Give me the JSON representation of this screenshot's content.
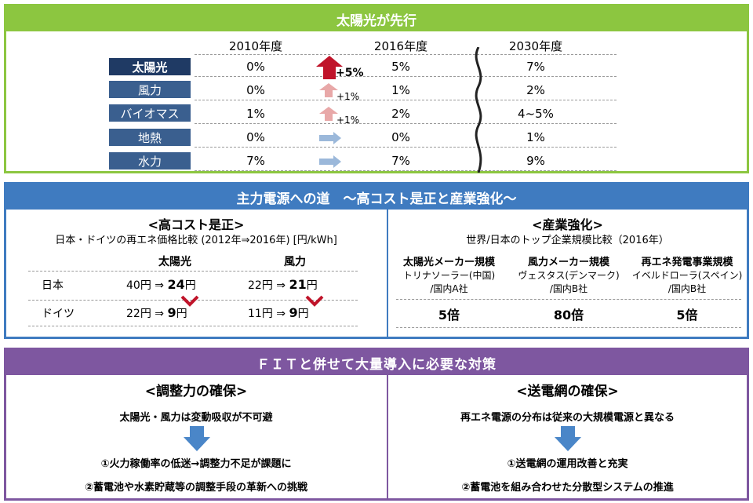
{
  "panel1": {
    "title": "太陽光が先行",
    "years": [
      "2010年度",
      "2016年度",
      "2030年度"
    ],
    "rows": [
      {
        "label": "太陽光",
        "v2010": "0%",
        "change": "+5%",
        "v2016": "5%",
        "v2030": "7%"
      },
      {
        "label": "風力",
        "v2010": "0%",
        "change": "+1%",
        "v2016": "1%",
        "v2030": "2%"
      },
      {
        "label": "バイオマス",
        "v2010": "1%",
        "change": "+1%",
        "v2016": "2%",
        "v2030": "4~5%"
      },
      {
        "label": "地熱",
        "v2010": "0%",
        "change": "",
        "v2016": "0%",
        "v2030": "1%"
      },
      {
        "label": "水力",
        "v2010": "7%",
        "change": "",
        "v2016": "7%",
        "v2030": "9%"
      }
    ],
    "colors": {
      "header": "#8cc640",
      "label_dark": "#1f3a64",
      "label_mid": "#3a5f8f",
      "arrow_big": "#c0142a",
      "arrow_small": "#e8a8a8",
      "arrow_right": "#9bb8da"
    }
  },
  "panel2": {
    "title": "主力電源への道　～高コスト是正と産業強化～",
    "left": {
      "heading": "<高コスト是正>",
      "subtitle": "日本・ドイツの再エネ価格比較 (2012年⇒2016年) [円/kWh]",
      "col_solar": "太陽光",
      "col_wind": "風力",
      "rows": [
        {
          "country": "日本",
          "solar_from": "40円 ⇒ ",
          "solar_to": "24",
          "wind_from": "22円 ⇒ ",
          "wind_to": "21",
          "unit": "円"
        },
        {
          "country": "ドイツ",
          "solar_from": "22円 ⇒ ",
          "solar_to": "9",
          "wind_from": "11円 ⇒ ",
          "wind_to": "9",
          "unit": "円"
        }
      ]
    },
    "right": {
      "heading": "<産業強化>",
      "subtitle": "世界/日本のトップ企業規模比較（2016年）",
      "cols": [
        {
          "title": "太陽光メーカー規模",
          "line1": "トリナソーラー(中国)",
          "line2": "/国内A社",
          "ratio": "5倍"
        },
        {
          "title": "風力メーカー規模",
          "line1": "ヴェスタス(デンマーク)",
          "line2": "/国内B社",
          "ratio": "80倍"
        },
        {
          "title": "再エネ発電事業規模",
          "line1": "イベルドローラ(スペイン)",
          "line2": "/国内B社",
          "ratio": "5倍"
        }
      ]
    },
    "colors": {
      "header": "#3f7bc0",
      "check": "#c0142a"
    }
  },
  "panel3": {
    "title": "ＦＩＴと併せて大量導入に必要な対策",
    "left": {
      "heading": "<調整力の確保>",
      "intro": "太陽光・風力は変動吸収が不可避",
      "item1": "①火力稼働率の低迷→調整力不足が課題に",
      "item2": "②蓄電池や水素貯蔵等の調整手段の革新への挑戦"
    },
    "right": {
      "heading": "<送電網の確保>",
      "intro": "再エネ電源の分布は従来の大規模電源と異なる",
      "item1": "①送電網の運用改善と充実",
      "item2": "②蓄電池を組み合わせた分散型システムの推進"
    },
    "colors": {
      "header": "#7e57a0",
      "down_arrow": "#4a86c8"
    }
  }
}
